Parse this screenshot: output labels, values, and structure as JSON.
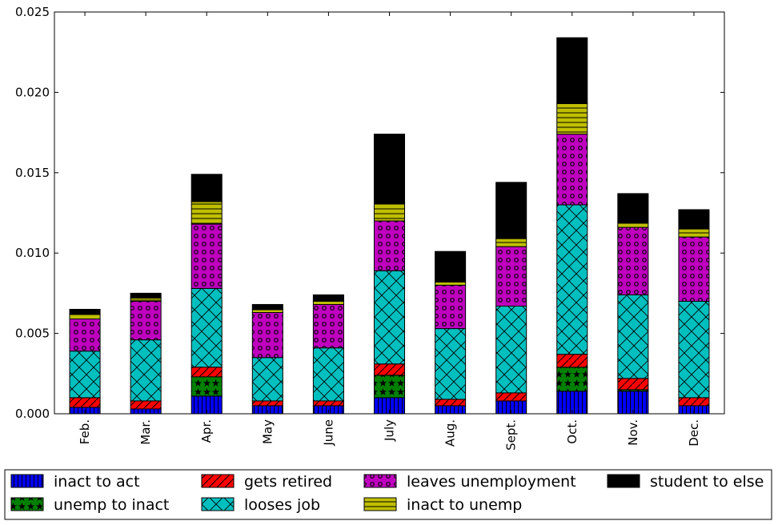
{
  "chart_data": {
    "type": "bar",
    "stacked": true,
    "categories": [
      "Feb.",
      "Mar.",
      "Apr.",
      "May",
      "June",
      "July",
      "Aug.",
      "Sept.",
      "Oct.",
      "Nov.",
      "Dec."
    ],
    "ylim": [
      0,
      0.025
    ],
    "yticks": [
      "0.000",
      "0.005",
      "0.010",
      "0.015",
      "0.020",
      "0.025"
    ],
    "legend_position": "bottom",
    "series": [
      {
        "name": "inact to act",
        "color": "#0000ff",
        "pattern": "vertical-lines",
        "values": [
          0.0004,
          0.0003,
          0.0011,
          0.0005,
          0.0005,
          0.001,
          0.0005,
          0.0008,
          0.0014,
          0.0014,
          0.0005
        ]
      },
      {
        "name": "unemp to inact",
        "color": "#008000",
        "pattern": "stars",
        "values": [
          0.0,
          0.0,
          0.0012,
          0.0,
          0.0,
          0.0014,
          0.0,
          0.0,
          0.0015,
          0.0001,
          0.0
        ]
      },
      {
        "name": "gets retired",
        "color": "#ff0000",
        "pattern": "diagonal-lines",
        "values": [
          0.0006,
          0.0005,
          0.0006,
          0.0003,
          0.0003,
          0.0007,
          0.0004,
          0.0005,
          0.0008,
          0.0007,
          0.0005
        ]
      },
      {
        "name": "looses job",
        "color": "#00bfbf",
        "pattern": "crosshatch",
        "values": [
          0.0029,
          0.0038,
          0.0049,
          0.0027,
          0.0033,
          0.0058,
          0.0044,
          0.0054,
          0.0093,
          0.0052,
          0.006
        ]
      },
      {
        "name": "leaves unemployment",
        "color": "#bf00bf",
        "pattern": "circles",
        "values": [
          0.002,
          0.0024,
          0.004,
          0.0028,
          0.0027,
          0.0031,
          0.0027,
          0.0037,
          0.0044,
          0.0042,
          0.004
        ]
      },
      {
        "name": "inact to unemp",
        "color": "#bfbf00",
        "pattern": "horizontal-lines",
        "values": [
          0.0003,
          0.0002,
          0.0014,
          0.0002,
          0.0002,
          0.0011,
          0.0002,
          0.0005,
          0.0019,
          0.0003,
          0.0005
        ]
      },
      {
        "name": "student to else",
        "color": "#000000",
        "pattern": "solid",
        "values": [
          0.0003,
          0.0003,
          0.0017,
          0.0003,
          0.0004,
          0.0043,
          0.0019,
          0.0035,
          0.0041,
          0.0018,
          0.0012
        ]
      }
    ]
  }
}
